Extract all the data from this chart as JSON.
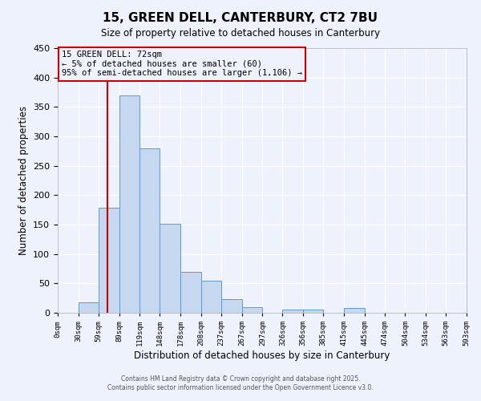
{
  "title": "15, GREEN DELL, CANTERBURY, CT2 7BU",
  "subtitle": "Size of property relative to detached houses in Canterbury",
  "xlabel": "Distribution of detached houses by size in Canterbury",
  "ylabel": "Number of detached properties",
  "bar_color": "#c5d8f0",
  "bar_edge_color": "#5b9bd5",
  "bin_edges": [
    0,
    30,
    59,
    89,
    119,
    148,
    178,
    208,
    237,
    267,
    297,
    326,
    356,
    385,
    415,
    445,
    474,
    504,
    534,
    563,
    593
  ],
  "bin_labels": [
    "0sqm",
    "30sqm",
    "59sqm",
    "89sqm",
    "119sqm",
    "148sqm",
    "178sqm",
    "208sqm",
    "237sqm",
    "267sqm",
    "297sqm",
    "326sqm",
    "356sqm",
    "385sqm",
    "415sqm",
    "445sqm",
    "474sqm",
    "504sqm",
    "534sqm",
    "563sqm",
    "593sqm"
  ],
  "counts": [
    0,
    18,
    178,
    370,
    280,
    152,
    70,
    55,
    23,
    10,
    0,
    6,
    5,
    0,
    8,
    0,
    0,
    0,
    0,
    0
  ],
  "ylim": [
    0,
    450
  ],
  "yticks": [
    0,
    50,
    100,
    150,
    200,
    250,
    300,
    350,
    400,
    450
  ],
  "property_line_x": 72,
  "property_line_color": "#cc0000",
  "annotation_title": "15 GREEN DELL: 72sqm",
  "annotation_line1": "← 5% of detached houses are smaller (60)",
  "annotation_line2": "95% of semi-detached houses are larger (1,106) →",
  "annotation_box_color": "#cc0000",
  "footnote1": "Contains HM Land Registry data © Crown copyright and database right 2025.",
  "footnote2": "Contains public sector information licensed under the Open Government Licence v3.0.",
  "bg_color": "#eef2fc",
  "grid_color": "#ffffff"
}
